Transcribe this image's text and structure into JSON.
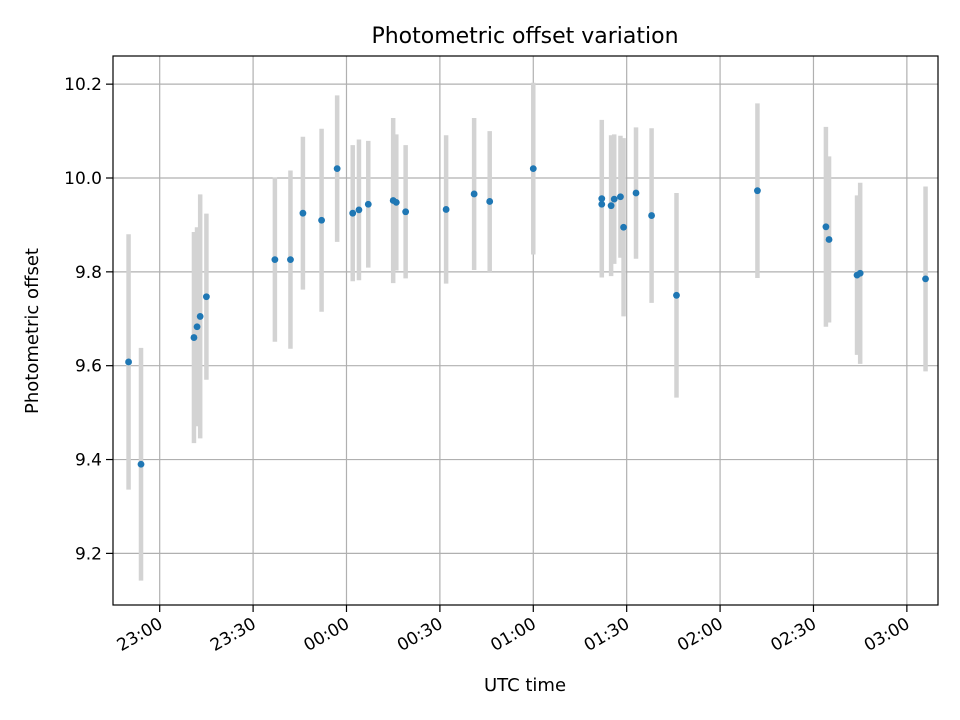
{
  "chart_data": {
    "type": "scatter",
    "title": "Photometric offset variation",
    "xlabel": "UTC time",
    "ylabel": "Photometric offset",
    "grid": true,
    "ylim": [
      9.09,
      10.26
    ],
    "xlim": [
      "22:45",
      "03:10"
    ],
    "x_ticks": [
      "23:00",
      "23:30",
      "00:00",
      "00:30",
      "01:00",
      "01:30",
      "02:00",
      "02:30",
      "03:00"
    ],
    "y_ticks": [
      "9.2",
      "9.4",
      "9.6",
      "9.8",
      "10.0",
      "10.2"
    ],
    "colors": {
      "point": "#1f77b4",
      "error_bar": "#d3d3d3",
      "grid": "#b0b0b0"
    },
    "points": [
      {
        "x": "22:50",
        "y": 9.608,
        "err": 0.272
      },
      {
        "x": "22:54",
        "y": 9.39,
        "err": 0.248
      },
      {
        "x": "23:11",
        "y": 9.66,
        "err": 0.225
      },
      {
        "x": "23:12",
        "y": 9.683,
        "err": 0.212
      },
      {
        "x": "23:13",
        "y": 9.705,
        "err": 0.26
      },
      {
        "x": "23:15",
        "y": 9.747,
        "err": 0.177
      },
      {
        "x": "23:37",
        "y": 9.826,
        "err": 0.175
      },
      {
        "x": "23:42",
        "y": 9.826,
        "err": 0.19
      },
      {
        "x": "23:46",
        "y": 9.925,
        "err": 0.163
      },
      {
        "x": "23:52",
        "y": 9.91,
        "err": 0.195
      },
      {
        "x": "23:57",
        "y": 10.02,
        "err": 0.156
      },
      {
        "x": "00:02",
        "y": 9.925,
        "err": 0.145
      },
      {
        "x": "00:04",
        "y": 9.932,
        "err": 0.15
      },
      {
        "x": "00:07",
        "y": 9.944,
        "err": 0.135
      },
      {
        "x": "00:15",
        "y": 9.952,
        "err": 0.176
      },
      {
        "x": "00:16",
        "y": 9.948,
        "err": 0.145
      },
      {
        "x": "00:19",
        "y": 9.928,
        "err": 0.142
      },
      {
        "x": "00:32",
        "y": 9.933,
        "err": 0.158
      },
      {
        "x": "00:41",
        "y": 9.966,
        "err": 0.162
      },
      {
        "x": "00:46",
        "y": 9.95,
        "err": 0.15
      },
      {
        "x": "01:00",
        "y": 10.02,
        "err": 0.183
      },
      {
        "x": "01:22",
        "y": 9.956,
        "err": 0.168
      },
      {
        "x": "01:22",
        "y": 9.944,
        "err": 0.155
      },
      {
        "x": "01:25",
        "y": 9.941,
        "err": 0.15
      },
      {
        "x": "01:26",
        "y": 9.955,
        "err": 0.138
      },
      {
        "x": "01:28",
        "y": 9.96,
        "err": 0.13
      },
      {
        "x": "01:29",
        "y": 9.895,
        "err": 0.19
      },
      {
        "x": "01:33",
        "y": 9.968,
        "err": 0.14
      },
      {
        "x": "01:38",
        "y": 9.92,
        "err": 0.186
      },
      {
        "x": "01:46",
        "y": 9.75,
        "err": 0.218
      },
      {
        "x": "02:12",
        "y": 9.973,
        "err": 0.186
      },
      {
        "x": "02:34",
        "y": 9.896,
        "err": 0.213
      },
      {
        "x": "02:35",
        "y": 9.869,
        "err": 0.177
      },
      {
        "x": "02:44",
        "y": 9.793,
        "err": 0.17
      },
      {
        "x": "02:45",
        "y": 9.797,
        "err": 0.193
      },
      {
        "x": "03:06",
        "y": 9.785,
        "err": 0.197
      }
    ]
  }
}
